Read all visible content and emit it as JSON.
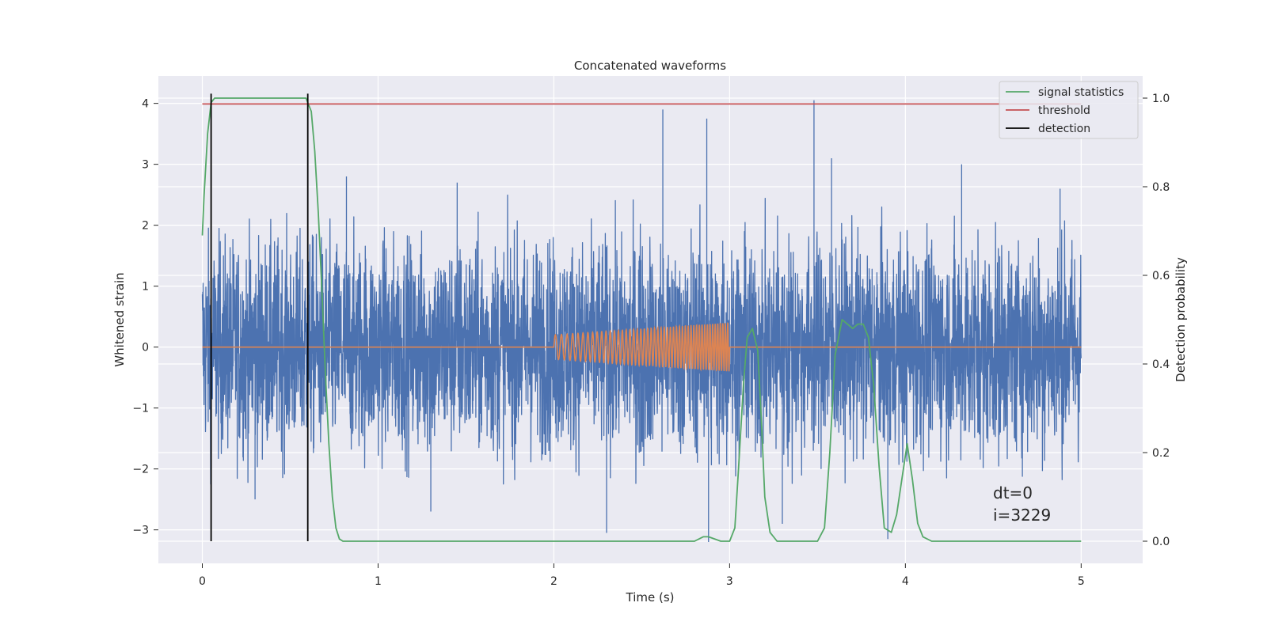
{
  "chart_data": {
    "type": "line",
    "title": "Concatenated waveforms",
    "xlabel": "Time (s)",
    "ylabel": "Whitened strain",
    "y2label": "Detection probability",
    "xlim": [
      -0.25,
      5.35
    ],
    "ylim": [
      -3.55,
      4.45
    ],
    "y2lim": [
      -0.05,
      1.05
    ],
    "xticks": [
      0,
      1,
      2,
      3,
      4,
      5
    ],
    "yticks": [
      -3,
      -2,
      -1,
      0,
      1,
      2,
      3,
      4
    ],
    "y2ticks": [
      0.0,
      0.2,
      0.4,
      0.6,
      0.8,
      1.0
    ],
    "grid": true,
    "legend_position": "top-right",
    "colors": {
      "background": "#eaeaf2",
      "strain": "#4c72b0",
      "template": "#dd8452",
      "signal_statistics": "#55a868",
      "threshold": "#c44e52",
      "detection": "#000000"
    },
    "legend": [
      {
        "label": "signal statistics",
        "key": "signal_statistics"
      },
      {
        "label": "threshold",
        "key": "threshold"
      },
      {
        "label": "detection",
        "key": "detection"
      }
    ],
    "series": [
      {
        "name": "signal statistics",
        "axis": "right",
        "x": [
          0.0,
          0.01,
          0.03,
          0.05,
          0.07,
          0.1,
          0.2,
          0.4,
          0.59,
          0.62,
          0.64,
          0.66,
          0.68,
          0.7,
          0.72,
          0.74,
          0.76,
          0.78,
          0.8,
          0.85,
          1.0,
          2.0,
          2.8,
          2.85,
          2.88,
          2.95,
          3.0,
          3.03,
          3.05,
          3.08,
          3.1,
          3.13,
          3.16,
          3.18,
          3.2,
          3.23,
          3.27,
          3.3,
          3.45,
          3.5,
          3.54,
          3.57,
          3.6,
          3.64,
          3.67,
          3.7,
          3.73,
          3.76,
          3.79,
          3.82,
          3.85,
          3.88,
          3.92,
          3.95,
          3.98,
          4.01,
          4.04,
          4.07,
          4.1,
          4.15,
          4.3,
          4.5,
          5.0
        ],
        "y": [
          0.69,
          0.78,
          0.92,
          0.99,
          1.0,
          1.0,
          1.0,
          1.0,
          1.0,
          0.97,
          0.88,
          0.74,
          0.57,
          0.38,
          0.22,
          0.1,
          0.03,
          0.005,
          0.0,
          0.0,
          0.0,
          0.0,
          0.0,
          0.01,
          0.01,
          0.0,
          0.0,
          0.03,
          0.16,
          0.36,
          0.46,
          0.48,
          0.43,
          0.28,
          0.1,
          0.02,
          0.0,
          0.0,
          0.0,
          0.0,
          0.03,
          0.2,
          0.42,
          0.5,
          0.49,
          0.48,
          0.49,
          0.49,
          0.46,
          0.35,
          0.17,
          0.03,
          0.02,
          0.06,
          0.14,
          0.22,
          0.14,
          0.04,
          0.01,
          0.0,
          0.0,
          0.0,
          0.0
        ]
      },
      {
        "name": "threshold",
        "axis": "left",
        "x": [
          0.0,
          5.0
        ],
        "y": [
          3.99,
          3.99
        ]
      }
    ],
    "detections": [
      0.05,
      0.6
    ],
    "strain_noise": {
      "x_range": [
        0.0,
        5.0
      ],
      "typical_max": 2.5,
      "typical_min": -2.3,
      "peak_max": 4.05,
      "peak_min": -3.2
    },
    "template_chirp": {
      "x_range": [
        2.0,
        3.0
      ],
      "start_amplitude": 0.2,
      "end_amplitude": 0.4
    },
    "annotations": [
      "dt=0",
      "i=3229"
    ]
  }
}
